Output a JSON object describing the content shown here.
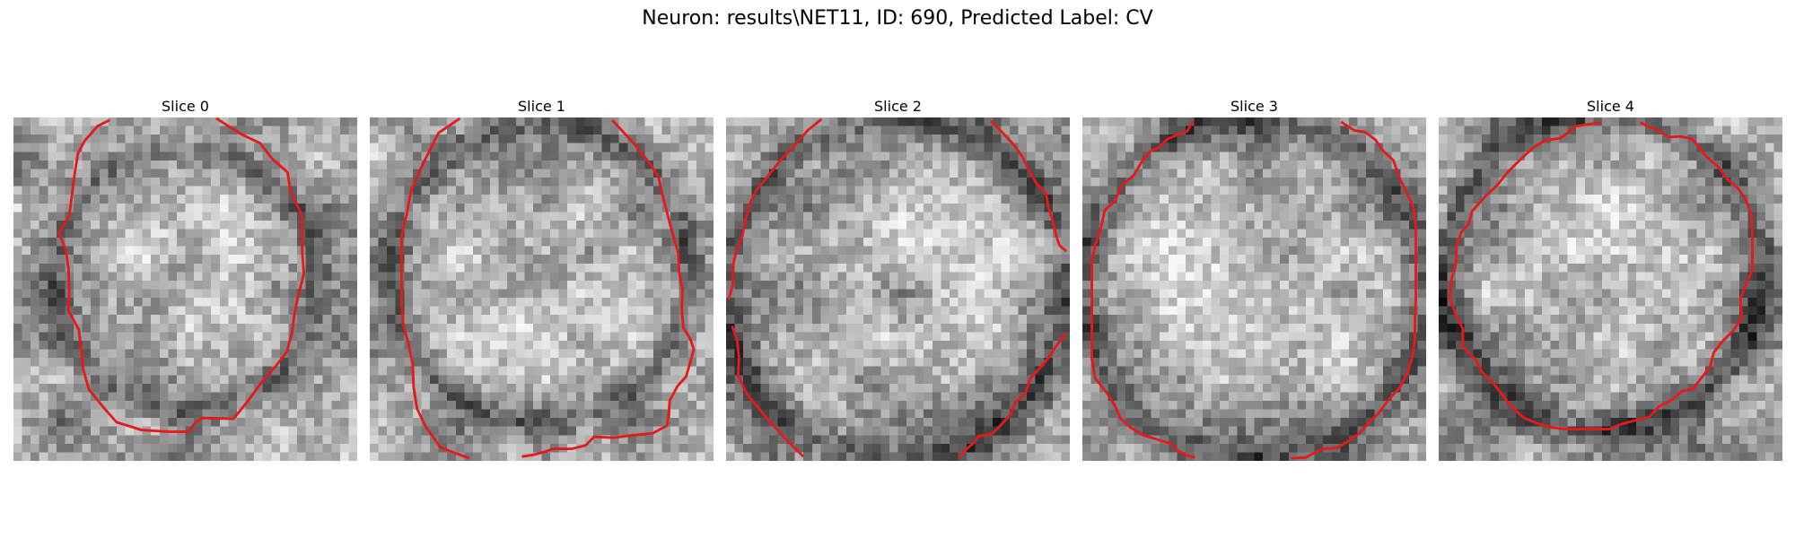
{
  "figure": {
    "title": "Neuron: results\\NET11, ID: 690, Predicted Label: CV"
  },
  "panels": [
    {
      "title": "Slice 0"
    },
    {
      "title": "Slice 1"
    },
    {
      "title": "Slice 2"
    },
    {
      "title": "Slice 3"
    },
    {
      "title": "Slice 4"
    }
  ],
  "colors": {
    "contour": "#e41a1c",
    "background": "#ffffff"
  }
}
